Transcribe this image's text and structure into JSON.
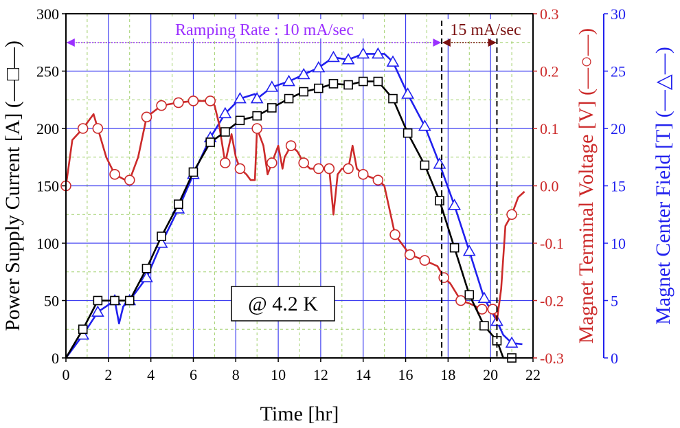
{
  "chart_data": {
    "type": "line",
    "xlabel": "Time [hr]",
    "x_ticks": [
      "0",
      "2",
      "4",
      "6",
      "8",
      "10",
      "12",
      "14",
      "16",
      "18",
      "20",
      "22"
    ],
    "xlim": [
      0,
      22
    ],
    "grid": true,
    "axes": {
      "left": {
        "label": "Power Supply Current [A] (—□—)",
        "range": [
          0,
          300
        ],
        "ticks": [
          "0",
          "50",
          "100",
          "150",
          "200",
          "250",
          "300"
        ],
        "color": "#000000"
      },
      "right1": {
        "label": "Magnet Terminal Voltage [V] (—○—)",
        "range": [
          -0.3,
          0.3
        ],
        "ticks": [
          "-0.3",
          "-0.2",
          "-0.1",
          "0.0",
          "0.1",
          "0.2",
          "0.3"
        ],
        "color": "#cc2a2a"
      },
      "right2": {
        "label": "Magnet Center Field [T] (—△—)",
        "range": [
          0,
          30
        ],
        "ticks": [
          "0",
          "5",
          "10",
          "15",
          "20",
          "25",
          "30"
        ],
        "color": "#2020ee"
      }
    },
    "series": [
      {
        "axis": "left",
        "marker": "square",
        "color": "#000000",
        "x": [
          0,
          0.8,
          1.5,
          2.3,
          3.0,
          3.8,
          4.5,
          5.3,
          6.0,
          6.8,
          7.5,
          8.2,
          9.0,
          9.7,
          10.5,
          11.2,
          11.9,
          12.6,
          13.3,
          14.0,
          14.7,
          15.4,
          16.1,
          16.9,
          17.6,
          18.3,
          19.0,
          19.7,
          20.3,
          20.6,
          21.0
        ],
        "y": [
          0,
          25,
          50,
          50,
          50,
          78,
          106,
          134,
          162,
          188,
          197,
          207,
          211,
          218,
          226,
          232,
          235,
          239,
          238,
          241,
          241,
          226,
          196,
          168,
          137,
          96,
          55,
          28,
          15,
          0,
          0
        ],
        "markers_x": [
          0.8,
          1.5,
          2.3,
          3.0,
          3.8,
          4.5,
          5.3,
          6.0,
          6.8,
          7.5,
          8.2,
          9.0,
          9.7,
          10.5,
          11.2,
          11.9,
          12.6,
          13.3,
          14.0,
          14.7,
          15.4,
          16.1,
          16.9,
          17.6,
          18.3,
          19.0,
          19.7,
          20.3,
          21.0
        ]
      },
      {
        "axis": "right1",
        "marker": "circle",
        "color": "#cc2a2a",
        "x": [
          0,
          0.3,
          0.8,
          1.1,
          1.3,
          1.5,
          1.9,
          2.3,
          2.8,
          3.0,
          3.4,
          3.8,
          4.5,
          5.3,
          6.0,
          6.8,
          7.0,
          7.2,
          7.5,
          7.8,
          8.0,
          8.2,
          8.5,
          8.7,
          8.9,
          9.0,
          9.3,
          9.5,
          9.7,
          10.0,
          10.2,
          10.3,
          10.6,
          10.9,
          11.2,
          11.5,
          11.9,
          12.4,
          12.6,
          12.8,
          13.0,
          13.3,
          13.5,
          13.7,
          14.0,
          14.7,
          15.0,
          15.5,
          16.2,
          16.9,
          17.5,
          17.8,
          18.1,
          18.6,
          19.0,
          19.6,
          20.1,
          20.3,
          20.5,
          20.7,
          21.0,
          21.3,
          21.6
        ],
        "y": [
          0.0,
          0.08,
          0.1,
          0.115,
          0.125,
          0.1,
          0.05,
          0.02,
          0.01,
          0.01,
          0.05,
          0.12,
          0.14,
          0.145,
          0.148,
          0.148,
          0.14,
          0.11,
          0.04,
          0.09,
          0.05,
          0.03,
          0.02,
          0.01,
          0.01,
          0.1,
          0.07,
          0.02,
          0.04,
          0.07,
          0.03,
          0.05,
          0.07,
          0.06,
          0.04,
          0.03,
          0.03,
          0.03,
          -0.05,
          0.02,
          0.03,
          0.03,
          0.07,
          0.03,
          0.02,
          0.01,
          0.0,
          -0.085,
          -0.12,
          -0.13,
          -0.14,
          -0.16,
          -0.17,
          -0.2,
          -0.205,
          -0.215,
          -0.215,
          -0.235,
          -0.18,
          -0.07,
          -0.05,
          -0.02,
          -0.01
        ],
        "markers_x": [
          0.0,
          0.8,
          1.5,
          2.3,
          3.0,
          3.8,
          4.5,
          5.3,
          6.0,
          6.8,
          7.5,
          8.2,
          9.0,
          9.7,
          10.6,
          11.2,
          11.9,
          12.4,
          13.3,
          14.0,
          14.7,
          15.5,
          16.2,
          16.9,
          17.8,
          18.6,
          19.6,
          20.1,
          21.0
        ]
      },
      {
        "axis": "right2",
        "marker": "triangle",
        "color": "#2020ee",
        "x": [
          0,
          0.8,
          1.5,
          2.3,
          2.5,
          2.7,
          3.0,
          3.8,
          4.5,
          5.3,
          6.0,
          6.8,
          7.5,
          8.2,
          8.9,
          9.0,
          9.7,
          10.5,
          11.2,
          11.9,
          12.6,
          13.3,
          14.0,
          14.7,
          15.0,
          15.4,
          16.1,
          16.9,
          17.6,
          18.3,
          19.0,
          19.7,
          20.3,
          20.6,
          21.0,
          21.5
        ],
        "y": [
          0,
          2,
          4,
          5,
          3,
          4.5,
          5,
          7,
          10,
          13,
          16,
          19.2,
          21.3,
          22.6,
          23.0,
          22.6,
          23.6,
          24.1,
          24.7,
          25.3,
          26.2,
          26.0,
          26.5,
          26.5,
          26.5,
          25.8,
          23.0,
          20.2,
          16.9,
          13.3,
          9.3,
          5.2,
          3.2,
          2.0,
          1.3,
          1.2
        ],
        "markers_x": [
          0.8,
          1.5,
          2.3,
          3.0,
          3.8,
          4.5,
          5.3,
          6.0,
          6.8,
          7.5,
          8.2,
          9.0,
          9.7,
          10.5,
          11.2,
          11.9,
          12.6,
          13.3,
          14.0,
          14.7,
          15.4,
          16.1,
          16.9,
          17.6,
          18.3,
          19.0,
          19.7,
          20.3,
          21.0
        ]
      }
    ],
    "annotations": {
      "ramp1": {
        "text": "Ramping Rate : 10 mA/sec",
        "x_from": 0,
        "x_to": 17.7,
        "color": "#9b30ff"
      },
      "ramp2": {
        "text": "15 mA/sec",
        "x_from": 17.7,
        "x_to": 20.3,
        "color": "#7a1010"
      },
      "vlines": [
        17.7,
        20.3
      ],
      "boxlabel": "@ 4.2 K"
    }
  }
}
